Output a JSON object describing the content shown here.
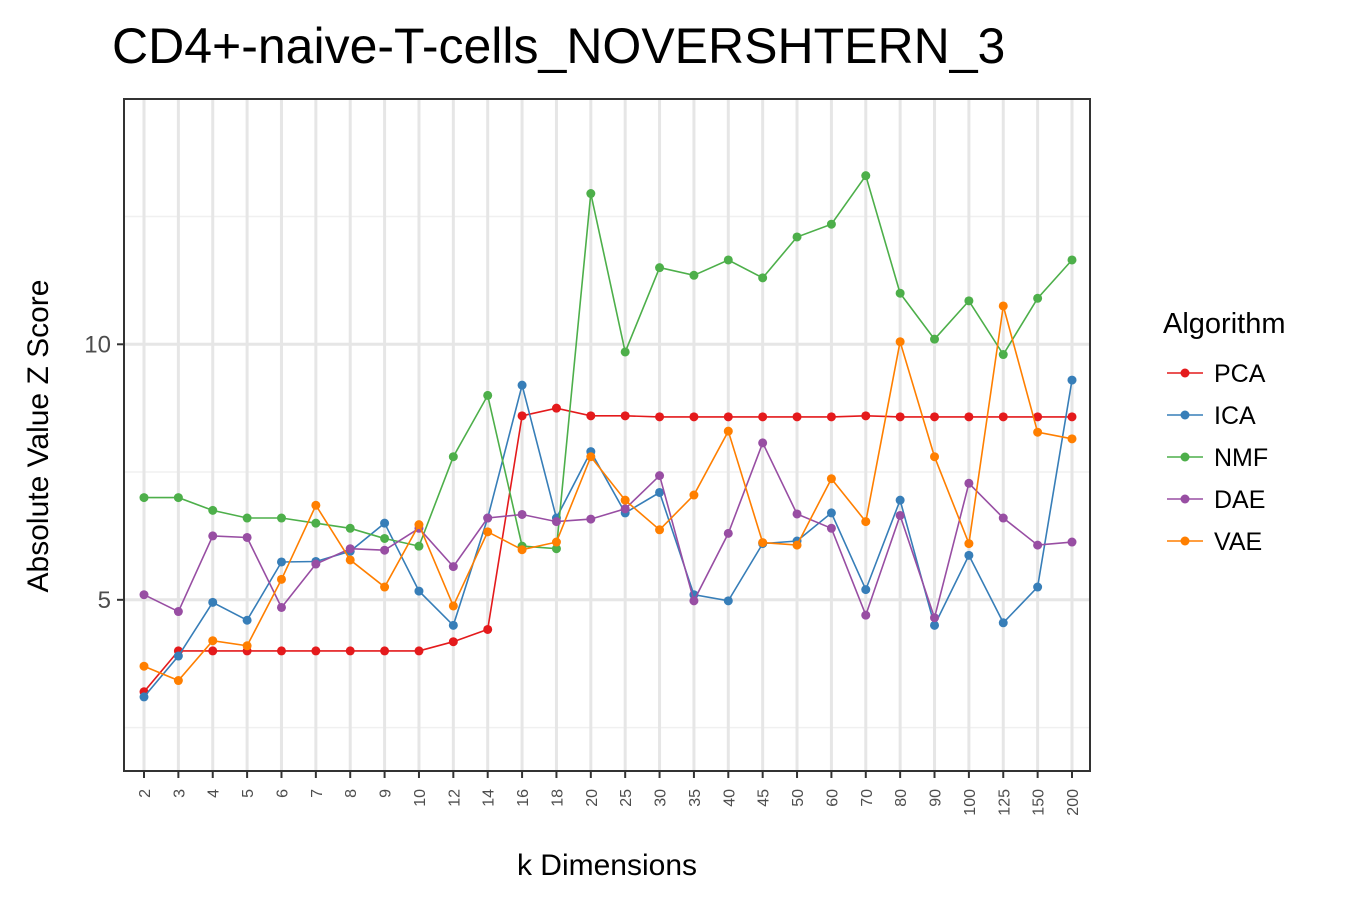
{
  "chart_data": {
    "type": "line",
    "title": "CD4+-naive-T-cells_NOVERSHTERN_3",
    "xlabel": "k Dimensions",
    "ylabel": "Absolute Value Z Score",
    "categories": [
      "2",
      "3",
      "4",
      "5",
      "6",
      "7",
      "8",
      "9",
      "10",
      "12",
      "14",
      "16",
      "18",
      "20",
      "25",
      "30",
      "35",
      "40",
      "45",
      "50",
      "60",
      "70",
      "80",
      "90",
      "100",
      "125",
      "150",
      "200"
    ],
    "ylim": [
      1.65,
      14.8
    ],
    "yticks": [
      5,
      10
    ],
    "grid": true,
    "legend": {
      "title": "Algorithm",
      "position": "right"
    },
    "series": [
      {
        "name": "PCA",
        "color": "#e41a1c",
        "values": [
          3.2,
          4.0,
          4.0,
          4.0,
          4.0,
          4.0,
          4.0,
          4.0,
          4.0,
          4.18,
          4.42,
          8.6,
          8.75,
          8.6,
          8.6,
          8.58,
          8.58,
          8.58,
          8.58,
          8.58,
          8.58,
          8.6,
          8.58,
          8.58,
          8.58,
          8.58,
          8.58,
          8.58
        ]
      },
      {
        "name": "ICA",
        "color": "#377eb8",
        "values": [
          3.1,
          3.9,
          4.95,
          4.6,
          5.74,
          5.75,
          5.95,
          6.5,
          5.17,
          4.5,
          6.6,
          9.2,
          6.6,
          7.9,
          6.7,
          7.1,
          5.1,
          4.98,
          6.1,
          6.15,
          6.7,
          5.2,
          6.95,
          4.5,
          5.87,
          4.55,
          5.25,
          9.3
        ]
      },
      {
        "name": "NMF",
        "color": "#4daf4a",
        "values": [
          7.0,
          7.0,
          6.75,
          6.6,
          6.6,
          6.5,
          6.4,
          6.2,
          6.05,
          7.8,
          9.0,
          6.05,
          6.0,
          12.95,
          9.85,
          11.5,
          11.35,
          11.65,
          11.3,
          12.1,
          12.35,
          13.3,
          11.0,
          10.1,
          10.85,
          9.8,
          10.9,
          11.65
        ]
      },
      {
        "name": "DAE",
        "color": "#984ea3",
        "values": [
          5.1,
          4.77,
          6.25,
          6.22,
          4.85,
          5.7,
          6.0,
          5.97,
          6.4,
          5.65,
          6.6,
          6.67,
          6.53,
          6.58,
          6.78,
          7.43,
          4.98,
          6.3,
          8.07,
          6.68,
          6.4,
          4.7,
          6.65,
          4.65,
          7.28,
          6.6,
          6.07,
          6.13
        ]
      },
      {
        "name": "VAE",
        "color": "#ff7f00",
        "values": [
          3.7,
          3.42,
          4.2,
          4.1,
          5.4,
          6.85,
          5.78,
          5.25,
          6.47,
          4.88,
          6.33,
          5.98,
          6.13,
          7.8,
          6.95,
          6.37,
          7.05,
          8.3,
          6.12,
          6.07,
          7.37,
          6.53,
          10.05,
          7.8,
          6.1,
          10.75,
          8.28,
          8.15
        ]
      }
    ]
  }
}
